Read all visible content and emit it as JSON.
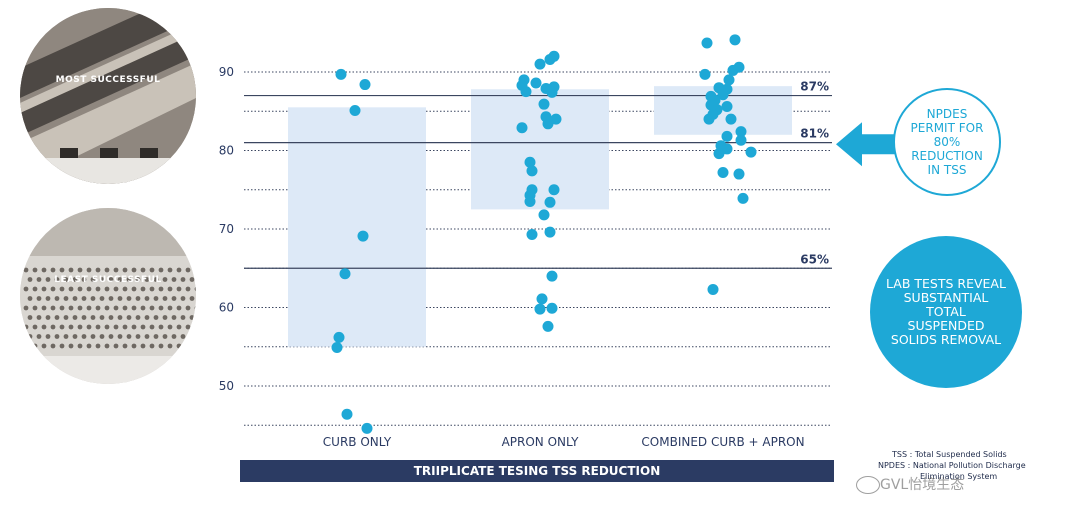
{
  "photos": {
    "top_label": "MOST SUCCESSFUL",
    "bottom_label": "LEAST SUCCESSFUL"
  },
  "callouts": {
    "npdes": "NPDES PERMIT FOR 80% REDUCTION IN TSS",
    "lab": "LAB TESTS REVEAL SUBSTANTIAL TOTAL SUSPENDED SOLIDS REMOVAL"
  },
  "footnotes": {
    "tss": "TSS : Total Suspended Solids",
    "npdes": "NPDES : National Pollution Discharge",
    "npdes_cont": "Elimination System"
  },
  "watermark": "GVL怡境生态",
  "colors": {
    "dot": "#1ea8d6",
    "box": "#dde9f7",
    "axis_text": "#2b3b63",
    "title_bar": "#2b3b63",
    "callout": "#1ea8d6"
  },
  "chart_data": {
    "type": "scatter",
    "title": "TRIIPLICATE TESING TSS REDUCTION",
    "xlabel": "",
    "ylabel": "",
    "categories": [
      "CURB ONLY",
      "APRON ONLY",
      "COMBINED CURB + APRON"
    ],
    "ylim": [
      45,
      93
    ],
    "yticks": [
      50,
      60,
      70,
      80,
      90
    ],
    "grid": "dotted horizontal lines",
    "reference_lines": [
      {
        "value": 87,
        "label": "87%"
      },
      {
        "value": 81,
        "label": "81%"
      },
      {
        "value": 65,
        "label": "65%"
      }
    ],
    "range_boxes": [
      {
        "category": "CURB ONLY",
        "low": 55,
        "high": 85.5
      },
      {
        "category": "APRON ONLY",
        "low": 72.5,
        "high": 87.8
      },
      {
        "category": "COMBINED CURB + APRON",
        "low": 82,
        "high": 88.2
      }
    ],
    "arrow_at": 80.8,
    "series": [
      {
        "category": "CURB ONLY",
        "points": [
          {
            "offset": -0.16,
            "y": 89.7
          },
          {
            "offset": 0.08,
            "y": 88.4
          },
          {
            "offset": -0.02,
            "y": 85.1
          },
          {
            "offset": 0.06,
            "y": 69.1
          },
          {
            "offset": -0.12,
            "y": 64.3
          },
          {
            "offset": -0.18,
            "y": 56.2
          },
          {
            "offset": -0.2,
            "y": 54.9
          },
          {
            "offset": -0.1,
            "y": 46.4
          },
          {
            "offset": 0.1,
            "y": 44.6
          }
        ]
      },
      {
        "category": "APRON ONLY",
        "points": [
          {
            "offset": 0.14,
            "y": 92.0
          },
          {
            "offset": 0.1,
            "y": 91.6
          },
          {
            "offset": 0.0,
            "y": 91.0
          },
          {
            "offset": -0.16,
            "y": 89.0
          },
          {
            "offset": -0.18,
            "y": 88.3
          },
          {
            "offset": -0.04,
            "y": 88.6
          },
          {
            "offset": 0.14,
            "y": 88.1
          },
          {
            "offset": -0.14,
            "y": 87.5
          },
          {
            "offset": 0.12,
            "y": 87.4
          },
          {
            "offset": 0.06,
            "y": 87.9
          },
          {
            "offset": 0.04,
            "y": 85.9
          },
          {
            "offset": 0.06,
            "y": 84.3
          },
          {
            "offset": 0.16,
            "y": 84.0
          },
          {
            "offset": 0.08,
            "y": 83.4
          },
          {
            "offset": -0.18,
            "y": 82.9
          },
          {
            "offset": -0.1,
            "y": 78.5
          },
          {
            "offset": -0.08,
            "y": 77.4
          },
          {
            "offset": -0.08,
            "y": 75.0
          },
          {
            "offset": 0.14,
            "y": 75.0
          },
          {
            "offset": -0.1,
            "y": 74.3
          },
          {
            "offset": -0.1,
            "y": 73.5
          },
          {
            "offset": 0.1,
            "y": 73.4
          },
          {
            "offset": 0.04,
            "y": 71.8
          },
          {
            "offset": -0.08,
            "y": 69.3
          },
          {
            "offset": 0.1,
            "y": 69.6
          },
          {
            "offset": 0.12,
            "y": 64.0
          },
          {
            "offset": 0.02,
            "y": 61.1
          },
          {
            "offset": 0.0,
            "y": 59.8
          },
          {
            "offset": 0.12,
            "y": 59.9
          },
          {
            "offset": 0.08,
            "y": 57.6
          }
        ]
      },
      {
        "category": "COMBINED CURB + APRON",
        "points": [
          {
            "offset": -0.16,
            "y": 93.7
          },
          {
            "offset": 0.12,
            "y": 94.1
          },
          {
            "offset": -0.18,
            "y": 89.7
          },
          {
            "offset": 0.1,
            "y": 90.2
          },
          {
            "offset": 0.16,
            "y": 90.6
          },
          {
            "offset": 0.06,
            "y": 89.0
          },
          {
            "offset": -0.04,
            "y": 88.0
          },
          {
            "offset": 0.04,
            "y": 87.8
          },
          {
            "offset": -0.12,
            "y": 86.9
          },
          {
            "offset": 0.0,
            "y": 87.1
          },
          {
            "offset": -0.08,
            "y": 86.4
          },
          {
            "offset": -0.12,
            "y": 85.8
          },
          {
            "offset": -0.06,
            "y": 85.2
          },
          {
            "offset": 0.04,
            "y": 85.6
          },
          {
            "offset": -0.1,
            "y": 84.6
          },
          {
            "offset": 0.08,
            "y": 84.0
          },
          {
            "offset": -0.14,
            "y": 84.0
          },
          {
            "offset": 0.18,
            "y": 82.4
          },
          {
            "offset": 0.04,
            "y": 81.8
          },
          {
            "offset": 0.18,
            "y": 81.3
          },
          {
            "offset": -0.02,
            "y": 80.6
          },
          {
            "offset": 0.04,
            "y": 80.2
          },
          {
            "offset": 0.28,
            "y": 79.8
          },
          {
            "offset": -0.04,
            "y": 79.6
          },
          {
            "offset": 0.0,
            "y": 77.2
          },
          {
            "offset": 0.16,
            "y": 77.0
          },
          {
            "offset": 0.2,
            "y": 73.9
          },
          {
            "offset": -0.1,
            "y": 62.3
          }
        ]
      }
    ]
  }
}
